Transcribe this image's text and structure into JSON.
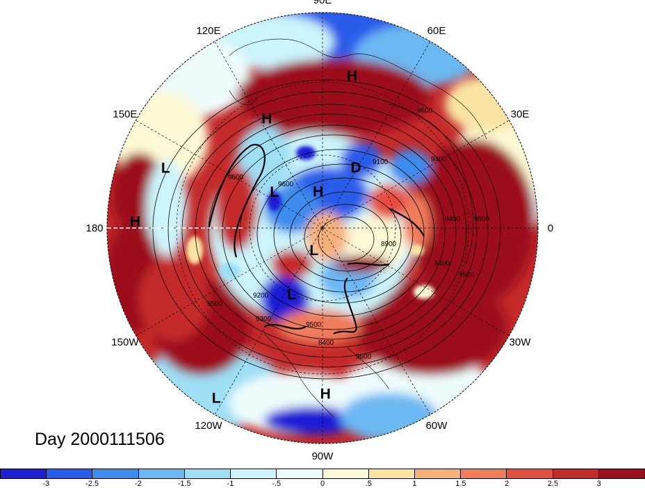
{
  "title": "Day 2000111506",
  "map": {
    "projection": "polar-stereographic",
    "hemisphere": "northern",
    "lon_labels": [
      {
        "text": "90E",
        "lon": 90
      },
      {
        "text": "60E",
        "lon": 60
      },
      {
        "text": "30E",
        "lon": 30
      },
      {
        "text": "0",
        "lon": 0
      },
      {
        "text": "30W",
        "lon": -30
      },
      {
        "text": "60W",
        "lon": -60
      },
      {
        "text": "90W",
        "lon": -90
      },
      {
        "text": "120W",
        "lon": -120
      },
      {
        "text": "150W",
        "lon": -150
      },
      {
        "text": "180",
        "lon": 180
      },
      {
        "text": "150E",
        "lon": 150
      },
      {
        "text": "120E",
        "lon": 120
      }
    ],
    "pressure_systems": [
      {
        "label": "H",
        "lon": 79,
        "lat": 18
      },
      {
        "label": "H",
        "lon": 117,
        "lat": 33
      },
      {
        "label": "L",
        "lon": 159,
        "lat": 12
      },
      {
        "label": "H",
        "lon": 178,
        "lat": 3
      },
      {
        "label": "L",
        "lon": 143,
        "lat": 62
      },
      {
        "label": "H",
        "lon": 97,
        "lat": 73
      },
      {
        "label": "L",
        "lon": -111,
        "lat": 79
      },
      {
        "label": "L",
        "lon": -115,
        "lat": 56
      },
      {
        "label": "D",
        "lon": 61,
        "lat": 58
      },
      {
        "label": "H",
        "lon": -89,
        "lat": 13
      },
      {
        "label": "L",
        "lon": -122,
        "lat": -3
      }
    ],
    "contour_labels": [
      "9600",
      "9600",
      "9100",
      "9400",
      "8900",
      "9400",
      "9500",
      "9500",
      "9400",
      "9300",
      "9500",
      "9200",
      "9600",
      "8400",
      "9600",
      "9500"
    ]
  },
  "colorbar": {
    "colors": [
      "#1f1fd6",
      "#2a5cea",
      "#3c8cee",
      "#6cb8f2",
      "#9edff6",
      "#ccf4fb",
      "#eefcfd",
      "#fdf9d6",
      "#fbe4a3",
      "#f7b07a",
      "#ef7c5a",
      "#e64e3f",
      "#c42a2a",
      "#9c0f1c"
    ],
    "ticks": [
      "-3",
      "-2.5",
      "-2",
      "-1.5",
      "-1",
      "-.5",
      "0",
      ".5",
      "1",
      "1.5",
      "2",
      "2.5",
      "3"
    ]
  }
}
